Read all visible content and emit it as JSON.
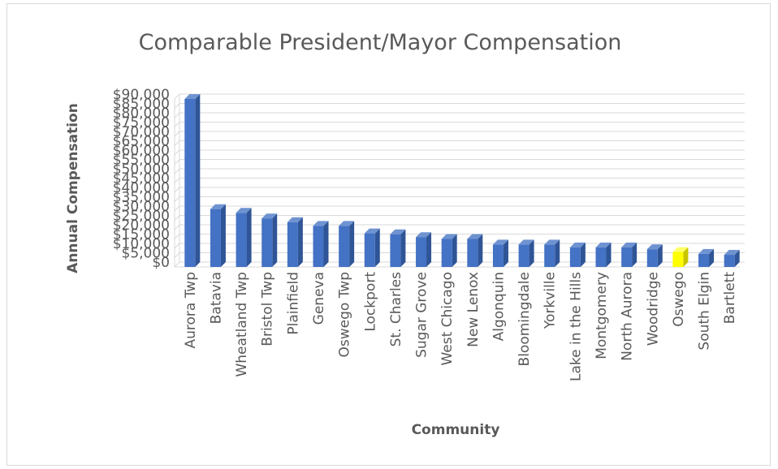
{
  "chart_data": {
    "type": "bar",
    "title": "Comparable President/Mayor Compensation",
    "xlabel": "Community",
    "ylabel": "Annual Compensation",
    "ylim": [
      0,
      90000
    ],
    "ytick_step": 5000,
    "ytick_labels": [
      "$0",
      "$5,000",
      "$10,000",
      "$15,000",
      "$20,000",
      "$25,000",
      "$30,000",
      "$35,000",
      "$40,000",
      "$45,000",
      "$50,000",
      "$55,000",
      "$60,000",
      "$65,000",
      "$70,000",
      "$75,000",
      "$80,000",
      "$85,000",
      "$90,000"
    ],
    "grid": true,
    "legend": "none",
    "categories": [
      "Aurora Twp",
      "Batavia",
      "Wheatland Twp",
      "Bristol Twp",
      "Plainfield",
      "Geneva",
      "Oswego Twp",
      "Lockport",
      "St. Charles",
      "Sugar Grove",
      "West Chicago",
      "New Lenox",
      "Algonquin",
      "Bloomingdale",
      "Yorkville",
      "Lake in the Hills",
      "Montgomery",
      "North Aurora",
      "Woodridge",
      "Oswego",
      "South Elgin",
      "Bartlett"
    ],
    "values": [
      90000,
      31000,
      29000,
      26000,
      24000,
      22000,
      22000,
      18000,
      17500,
      16000,
      15000,
      15000,
      12000,
      12000,
      12000,
      10500,
      10500,
      10500,
      9500,
      8000,
      7000,
      6500
    ],
    "colors": {
      "bar": "#4472c4",
      "bar_side": "#2f5597",
      "bar_top": "#6f93d1",
      "highlight": "#ffff00",
      "highlight_side": "#c9c400",
      "highlight_top": "#ffff66",
      "highlight_category": "Oswego",
      "grid": "#d9d9d9",
      "text": "#595959",
      "title": "#595959"
    }
  }
}
